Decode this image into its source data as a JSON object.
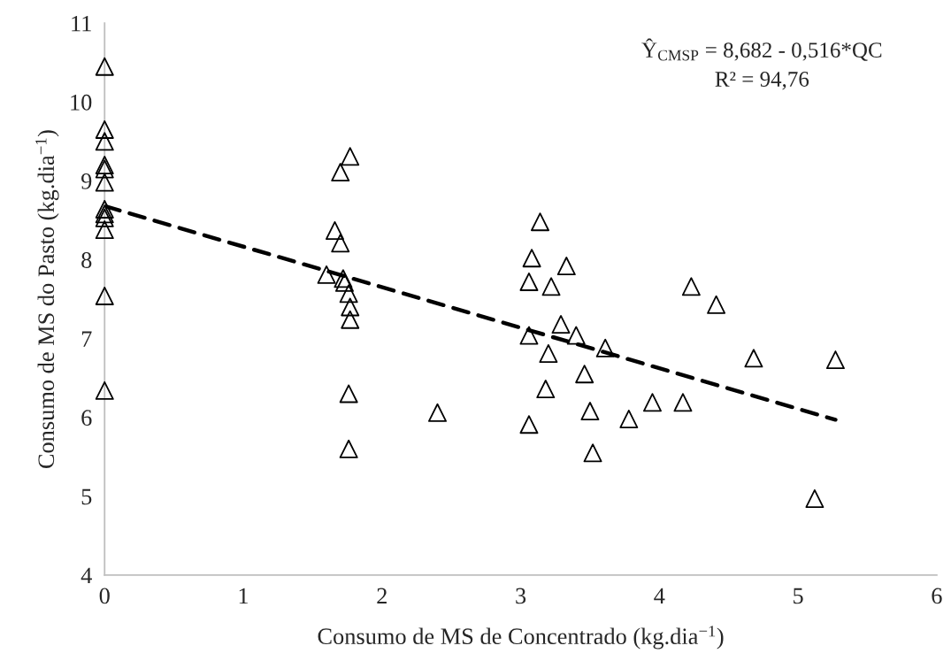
{
  "chart_data": {
    "type": "scatter",
    "xlabel": "Consumo de MS de Concentrado (kg.dia$^{−1}$)",
    "ylabel": "Consumo de MS do Pasto (kg.dia$^{−1}$)",
    "annotations": [
      "Ŷ$_{CMSP}$ = 8,682 - 0,516*QC",
      "R² = 94,76"
    ],
    "xlim": [
      0,
      6
    ],
    "ylim": [
      4,
      11
    ],
    "xticks": [
      0,
      1,
      2,
      3,
      4,
      5,
      6
    ],
    "yticks": [
      4,
      5,
      6,
      7,
      8,
      9,
      10,
      11
    ],
    "grid": false,
    "legend": false,
    "series": [
      {
        "marker": "triangle",
        "color": "#000000",
        "x": [
          0,
          0,
          0,
          0,
          0,
          0,
          0,
          0,
          0,
          0,
          0,
          0,
          1.77,
          1.7,
          1.66,
          1.7,
          1.6,
          1.72,
          1.73,
          1.76,
          1.77,
          1.77,
          1.76,
          2.4,
          1.76,
          3.14,
          3.08,
          3.06,
          3.06,
          3.06,
          3.33,
          3.22,
          3.29,
          3.4,
          3.2,
          3.61,
          3.46,
          3.18,
          4.23,
          4.41,
          4.68,
          3.95,
          4.17,
          3.5,
          3.78,
          3.52,
          5.27,
          5.12
        ],
        "values": [
          10.45,
          9.65,
          9.5,
          9.2,
          9.15,
          8.98,
          8.64,
          8.58,
          8.53,
          8.38,
          7.54,
          6.34,
          9.31,
          9.11,
          8.37,
          8.21,
          7.81,
          7.76,
          7.71,
          7.57,
          7.4,
          7.24,
          6.3,
          6.06,
          5.6,
          8.48,
          8.02,
          7.72,
          7.04,
          5.91,
          7.92,
          7.66,
          7.18,
          7.04,
          6.81,
          6.88,
          6.55,
          6.36,
          7.66,
          7.43,
          6.75,
          6.19,
          6.19,
          6.08,
          5.98,
          5.55,
          6.73,
          4.97
        ]
      },
      {
        "type": "line",
        "line_style": "dashed",
        "color": "#000000",
        "x": [
          0,
          5.27
        ],
        "values": [
          8.68,
          5.97
        ]
      }
    ]
  }
}
